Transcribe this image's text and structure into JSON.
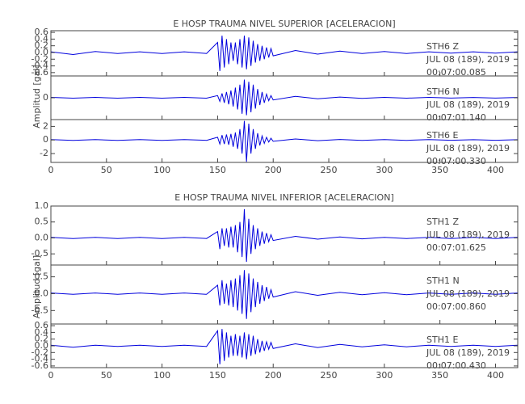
{
  "chart_data": [
    {
      "type": "line",
      "title": "E HOSP TRAUMA NIVEL SUPERIOR [ACELERACION]",
      "y_label": "Amplitud [gal]",
      "xlim": [
        0,
        420
      ],
      "xticks": [
        0,
        50,
        100,
        150,
        200,
        250,
        300,
        350,
        400
      ],
      "x": [
        0,
        20,
        40,
        60,
        80,
        100,
        120,
        140,
        150,
        152,
        154,
        156,
        158,
        160,
        162,
        164,
        166,
        168,
        170,
        172,
        174,
        176,
        178,
        180,
        182,
        184,
        186,
        188,
        190,
        192,
        194,
        196,
        198,
        200,
        220,
        240,
        260,
        280,
        300,
        320,
        340,
        360,
        380,
        400,
        420
      ],
      "panels": [
        {
          "station": "STH6   Z",
          "date": "JUL 08 (189), 2019",
          "time": "00:07:00.085",
          "color": "#0000dd",
          "ylim": [
            -0.7,
            0.65
          ],
          "yticks": [
            0.6,
            0.4,
            0.2,
            {
              "value": 0,
              "label": "0.0"
            },
            -0.2,
            -0.4,
            -0.6
          ],
          "values": [
            0.02,
            -0.06,
            0.03,
            -0.03,
            0.02,
            -0.03,
            0.02,
            -0.03,
            0.3,
            -0.55,
            0.5,
            -0.45,
            0.4,
            -0.35,
            0.3,
            -0.25,
            0.3,
            -0.35,
            0.4,
            -0.45,
            0.5,
            -0.5,
            0.45,
            -0.4,
            0.35,
            -0.3,
            0.25,
            -0.25,
            0.2,
            -0.2,
            0.15,
            -0.15,
            0.12,
            -0.1,
            0.06,
            -0.05,
            0.04,
            -0.03,
            0.03,
            -0.03,
            0.02,
            -0.02,
            0.02,
            -0.02,
            0.02
          ]
        },
        {
          "station": "STH6   N",
          "date": "JUL 08 (189), 2019",
          "time": "00:07:01.140",
          "color": "#0000dd",
          "ylim": [
            -3,
            3
          ],
          "yticks": [
            0
          ],
          "values": [
            0.05,
            -0.05,
            0.05,
            -0.05,
            0.05,
            -0.05,
            0.05,
            -0.05,
            0.3,
            -0.5,
            0.6,
            -0.7,
            0.8,
            -0.9,
            1,
            -1.2,
            1.4,
            -1.6,
            1.8,
            -2.2,
            2.5,
            -2.4,
            2.2,
            -2,
            1.8,
            -1.5,
            1.2,
            -1,
            0.8,
            -0.7,
            0.5,
            -0.4,
            0.3,
            -0.3,
            0.2,
            -0.15,
            0.1,
            -0.08,
            0.06,
            -0.05,
            0.05,
            -0.04,
            0.04,
            -0.04,
            0.04
          ]
        },
        {
          "station": "STH6   E",
          "date": "JUL 08 (189), 2019",
          "time": "00:07:00.330",
          "color": "#0000dd",
          "ylim": [
            -3.3,
            3
          ],
          "yticks": [
            2,
            0,
            -2
          ],
          "values": [
            0.05,
            -0.05,
            0.05,
            -0.05,
            0.05,
            -0.05,
            0.05,
            -0.05,
            0.4,
            -0.6,
            0.7,
            -0.6,
            0.8,
            -0.7,
            0.9,
            -1,
            1.1,
            -1.3,
            1.6,
            -2,
            2.8,
            -3.2,
            2.4,
            -2,
            1.6,
            -1.3,
            1,
            -0.8,
            0.6,
            -0.5,
            0.4,
            -0.3,
            0.25,
            -0.2,
            0.15,
            -0.1,
            0.08,
            -0.06,
            0.05,
            -0.05,
            0.05,
            -0.04,
            0.04,
            -0.04,
            0.04
          ]
        }
      ]
    },
    {
      "type": "line",
      "title": "E HOSP TRAUMA NIVEL INFERIOR [ACELERACION]",
      "y_label": "Amplitud [gal]",
      "xlim": [
        0,
        420
      ],
      "xticks": [
        0,
        50,
        100,
        150,
        200,
        250,
        300,
        350,
        400
      ],
      "x": [
        0,
        20,
        40,
        60,
        80,
        100,
        120,
        140,
        150,
        152,
        154,
        156,
        158,
        160,
        162,
        164,
        166,
        168,
        170,
        172,
        174,
        176,
        178,
        180,
        182,
        184,
        186,
        188,
        190,
        192,
        194,
        196,
        198,
        200,
        220,
        240,
        260,
        280,
        300,
        320,
        340,
        360,
        380,
        400,
        420
      ],
      "panels": [
        {
          "station": "STH1   Z",
          "date": "JUL 08 (189), 2019",
          "time": "00:07:01.625",
          "color": "#0000dd",
          "ylim": [
            -0.85,
            1.0
          ],
          "yticks": [
            {
              "value": 1,
              "label": "1.0"
            },
            0.5,
            {
              "value": 0,
              "label": "0.0"
            },
            -0.5
          ],
          "values": [
            0.02,
            -0.02,
            0.02,
            -0.02,
            0.02,
            -0.02,
            0.02,
            -0.02,
            0.2,
            -0.35,
            0.3,
            -0.25,
            0.3,
            -0.3,
            0.35,
            -0.3,
            0.4,
            -0.45,
            0.5,
            -0.6,
            0.9,
            -0.75,
            0.6,
            -0.5,
            0.4,
            -0.35,
            0.3,
            -0.25,
            0.2,
            -0.18,
            0.15,
            -0.12,
            0.1,
            -0.08,
            0.05,
            -0.04,
            0.03,
            -0.03,
            0.02,
            -0.02,
            0.02,
            -0.02,
            0.02,
            -0.02,
            0.02
          ]
        },
        {
          "station": "STH1   N",
          "date": "JUL 08 (189), 2019",
          "time": "00:07:00.860",
          "color": "#0000dd",
          "ylim": [
            -0.9,
            0.85
          ],
          "yticks": [
            0.5,
            {
              "value": 0,
              "label": "0.0"
            },
            -0.5
          ],
          "values": [
            0.02,
            -0.02,
            0.02,
            -0.02,
            0.02,
            -0.02,
            0.02,
            -0.02,
            0.25,
            -0.35,
            0.4,
            -0.3,
            0.3,
            -0.35,
            0.4,
            -0.4,
            0.45,
            -0.5,
            0.55,
            -0.6,
            0.7,
            -0.75,
            0.6,
            -0.55,
            0.45,
            -0.4,
            0.35,
            -0.3,
            0.25,
            -0.22,
            0.2,
            -0.15,
            0.12,
            -0.1,
            0.06,
            -0.05,
            0.04,
            -0.03,
            0.03,
            -0.03,
            0.02,
            -0.02,
            0.02,
            -0.02,
            0.02
          ]
        },
        {
          "station": "STH1   E",
          "date": "JUL 08 (189), 2019",
          "time": "00:07:00.430",
          "color": "#0000dd",
          "ylim": [
            -0.65,
            0.65
          ],
          "yticks": [
            0.6,
            0.4,
            0.2,
            {
              "value": 0,
              "label": "0.0"
            },
            -0.2,
            -0.4,
            -0.6
          ],
          "values": [
            0.02,
            -0.04,
            0.02,
            -0.02,
            0.02,
            -0.02,
            0.02,
            -0.02,
            0.45,
            -0.55,
            0.5,
            -0.45,
            0.4,
            -0.35,
            0.3,
            -0.3,
            0.35,
            -0.3,
            0.3,
            -0.35,
            0.4,
            -0.4,
            0.35,
            -0.3,
            0.3,
            -0.25,
            0.2,
            -0.2,
            0.15,
            -0.15,
            0.12,
            -0.1,
            0.1,
            -0.08,
            0.06,
            -0.05,
            0.04,
            -0.03,
            0.03,
            -0.03,
            0.02,
            -0.02,
            0.02,
            -0.02,
            0.02
          ]
        }
      ]
    }
  ]
}
